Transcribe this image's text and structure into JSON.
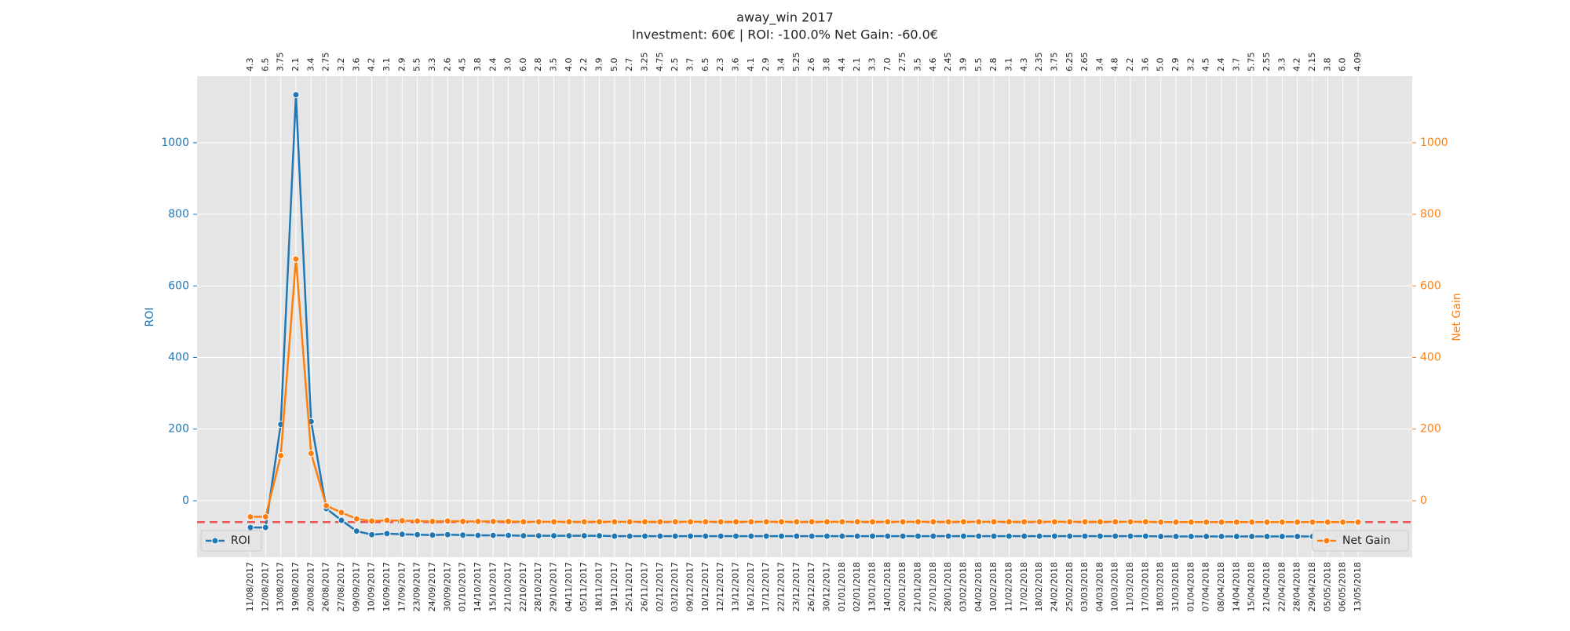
{
  "chart_data": {
    "type": "line",
    "title": "away_win 2017",
    "subtitle": "Investment: 60€ | ROI: -100.0% Net Gain: -60.0€",
    "x": [
      "11/08/2017",
      "12/08/2017",
      "13/08/2017",
      "19/08/2017",
      "20/08/2017",
      "26/08/2017",
      "27/08/2017",
      "09/09/2017",
      "10/09/2017",
      "16/09/2017",
      "17/09/2017",
      "23/09/2017",
      "24/09/2017",
      "30/09/2017",
      "01/10/2017",
      "14/10/2017",
      "15/10/2017",
      "21/10/2017",
      "22/10/2017",
      "28/10/2017",
      "29/10/2017",
      "04/11/2017",
      "05/11/2017",
      "18/11/2017",
      "19/11/2017",
      "25/11/2017",
      "26/11/2017",
      "02/12/2017",
      "03/12/2017",
      "09/12/2017",
      "10/12/2017",
      "12/12/2017",
      "13/12/2017",
      "16/12/2017",
      "17/12/2017",
      "22/12/2017",
      "23/12/2017",
      "26/12/2017",
      "30/12/2017",
      "01/01/2018",
      "02/01/2018",
      "13/01/2018",
      "14/01/2018",
      "20/01/2018",
      "21/01/2018",
      "27/01/2018",
      "28/01/2018",
      "03/02/2018",
      "04/02/2018",
      "10/02/2018",
      "11/02/2018",
      "17/02/2018",
      "18/02/2018",
      "24/02/2018",
      "25/02/2018",
      "03/03/2018",
      "04/03/2018",
      "10/03/2018",
      "11/03/2018",
      "17/03/2018",
      "18/03/2018",
      "31/03/2018",
      "01/04/2018",
      "07/04/2018",
      "08/04/2018",
      "14/04/2018",
      "15/04/2018",
      "21/04/2018",
      "22/04/2018",
      "28/04/2018",
      "29/04/2018",
      "05/05/2018",
      "06/05/2018",
      "13/05/2018"
    ],
    "top_labels": [
      "4.3",
      "6.5",
      "3.75",
      "2.1",
      "3.4",
      "2.75",
      "3.2",
      "3.6",
      "4.2",
      "3.1",
      "2.9",
      "5.5",
      "3.3",
      "2.6",
      "4.5",
      "3.8",
      "2.4",
      "3.0",
      "6.0",
      "2.8",
      "3.5",
      "4.0",
      "2.2",
      "3.9",
      "5.0",
      "2.7",
      "3.25",
      "4.75",
      "2.5",
      "3.7",
      "6.5",
      "2.3",
      "3.6",
      "4.1",
      "2.9",
      "3.4",
      "5.25",
      "2.6",
      "3.8",
      "4.4",
      "2.1",
      "3.3",
      "7.0",
      "2.75",
      "3.5",
      "4.6",
      "2.45",
      "3.9",
      "5.5",
      "2.8",
      "3.1",
      "4.3",
      "2.35",
      "3.75",
      "6.25",
      "2.65",
      "3.4",
      "4.8",
      "2.2",
      "3.6",
      "5.0",
      "2.9",
      "3.2",
      "4.5",
      "2.4",
      "3.7",
      "5.75",
      "2.55",
      "3.3",
      "4.2",
      "2.15",
      "3.8",
      "6.0",
      "4.09"
    ],
    "ylim": [
      -158,
      1186
    ],
    "yticks": [
      0,
      200,
      400,
      600,
      800,
      1000
    ],
    "y2lim": [
      -158,
      1186
    ],
    "y2ticks": [
      0,
      200,
      400,
      600,
      800,
      1000
    ],
    "ylabel": "ROI",
    "y2label": "Net Gain",
    "grid": true,
    "hline": {
      "value": -60,
      "color": "#e8585a"
    },
    "series": [
      {
        "name": "ROI",
        "color": "#1f77b4",
        "axis": "y",
        "legend": "lower left",
        "values": [
          -75,
          -75,
          213,
          1134,
          221,
          -22,
          -55,
          -85,
          -95,
          -92,
          -94,
          -95,
          -96,
          -95,
          -96,
          -97,
          -97,
          -97,
          -98,
          -98,
          -98,
          -98,
          -98,
          -98,
          -99,
          -99,
          -99,
          -99,
          -99,
          -99,
          -99,
          -99,
          -99,
          -99,
          -99,
          -99,
          -99,
          -99,
          -99,
          -99,
          -99,
          -99,
          -99,
          -99,
          -99,
          -99,
          -99,
          -99,
          -99,
          -99,
          -99,
          -99,
          -99,
          -99,
          -99,
          -99,
          -99,
          -99,
          -99,
          -99,
          -100,
          -100,
          -100,
          -100,
          -100,
          -100,
          -100,
          -100,
          -100,
          -100,
          -100,
          -100,
          -100,
          -100
        ]
      },
      {
        "name": "Net Gain",
        "color": "#ff7f0e",
        "axis": "y2",
        "legend": "lower right",
        "values": [
          -45,
          -45,
          126,
          675,
          132,
          -14,
          -33,
          -51,
          -57,
          -55,
          -56,
          -57,
          -58,
          -57,
          -58,
          -58,
          -58,
          -58,
          -59,
          -59,
          -59,
          -59,
          -59,
          -59,
          -59,
          -59,
          -59,
          -59,
          -59,
          -59,
          -59,
          -59,
          -59,
          -59,
          -59,
          -59,
          -59,
          -59,
          -59,
          -59,
          -59,
          -59,
          -59,
          -59,
          -59,
          -59,
          -59,
          -59,
          -59,
          -59,
          -59,
          -59,
          -59,
          -59,
          -59,
          -59,
          -59,
          -59,
          -59,
          -59,
          -60,
          -60,
          -60,
          -60,
          -60,
          -60,
          -60,
          -60,
          -60,
          -60,
          -60,
          -60,
          -60,
          -60
        ]
      }
    ]
  }
}
